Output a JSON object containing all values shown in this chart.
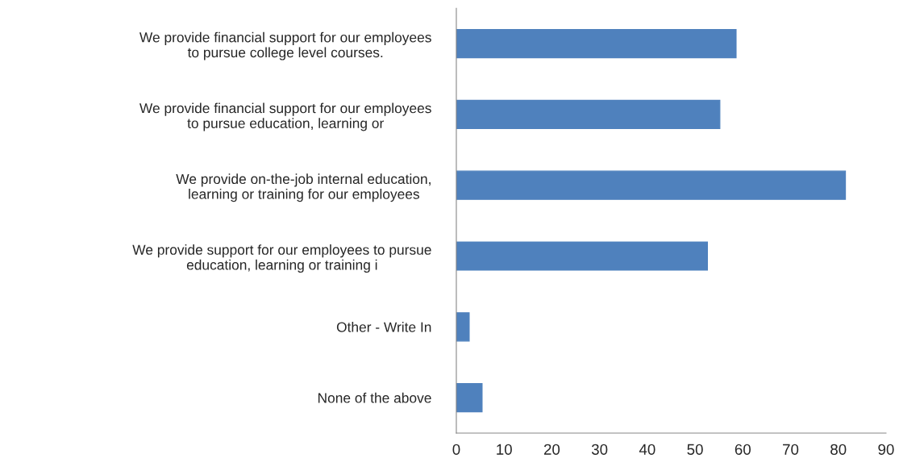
{
  "chart_data": {
    "type": "bar",
    "orientation": "horizontal",
    "categories": [
      "We provide financial support for our employees\nto pursue college level courses.",
      "We provide financial support for our employees\nto pursue education, learning or",
      "We provide on-the-job internal education,\nlearning or training for our employees",
      "We provide support for our employees to pursue\neducation, learning or training i",
      "Other - Write In",
      "None of the above"
    ],
    "values": [
      58.6,
      55.2,
      81.5,
      52.6,
      2.7,
      5.4
    ],
    "color": "#4f81bd",
    "xlim": [
      0,
      90
    ],
    "xticks": [
      0,
      10,
      20,
      30,
      40,
      50,
      60,
      70,
      80,
      90
    ],
    "grid": false,
    "legend": false
  }
}
